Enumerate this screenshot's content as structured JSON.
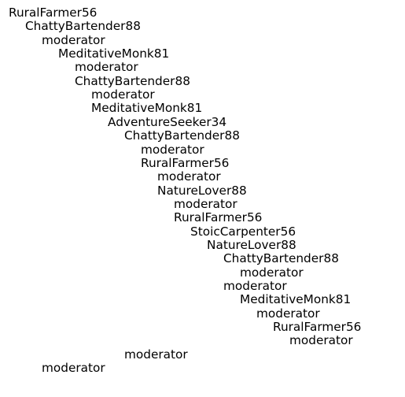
{
  "colors": {
    "background": "#ffffff",
    "text": "#000000"
  },
  "reply_tree": [
    {
      "depth": 0,
      "author": "RuralFarmer56"
    },
    {
      "depth": 1,
      "author": "ChattyBartender88"
    },
    {
      "depth": 2,
      "author": "moderator"
    },
    {
      "depth": 3,
      "author": "MeditativeMonk81"
    },
    {
      "depth": 4,
      "author": "moderator"
    },
    {
      "depth": 4,
      "author": "ChattyBartender88"
    },
    {
      "depth": 5,
      "author": "moderator"
    },
    {
      "depth": 5,
      "author": "MeditativeMonk81"
    },
    {
      "depth": 6,
      "author": "AdventureSeeker34"
    },
    {
      "depth": 7,
      "author": "ChattyBartender88"
    },
    {
      "depth": 8,
      "author": "moderator"
    },
    {
      "depth": 8,
      "author": "RuralFarmer56"
    },
    {
      "depth": 9,
      "author": "moderator"
    },
    {
      "depth": 9,
      "author": "NatureLover88"
    },
    {
      "depth": 10,
      "author": "moderator"
    },
    {
      "depth": 10,
      "author": "RuralFarmer56"
    },
    {
      "depth": 11,
      "author": "StoicCarpenter56"
    },
    {
      "depth": 12,
      "author": "NatureLover88"
    },
    {
      "depth": 13,
      "author": "ChattyBartender88"
    },
    {
      "depth": 14,
      "author": "moderator"
    },
    {
      "depth": 13,
      "author": "moderator"
    },
    {
      "depth": 14,
      "author": "MeditativeMonk81"
    },
    {
      "depth": 15,
      "author": "moderator"
    },
    {
      "depth": 16,
      "author": "RuralFarmer56"
    },
    {
      "depth": 17,
      "author": "moderator"
    },
    {
      "depth": 7,
      "author": "moderator"
    },
    {
      "depth": 2,
      "author": "moderator"
    }
  ]
}
